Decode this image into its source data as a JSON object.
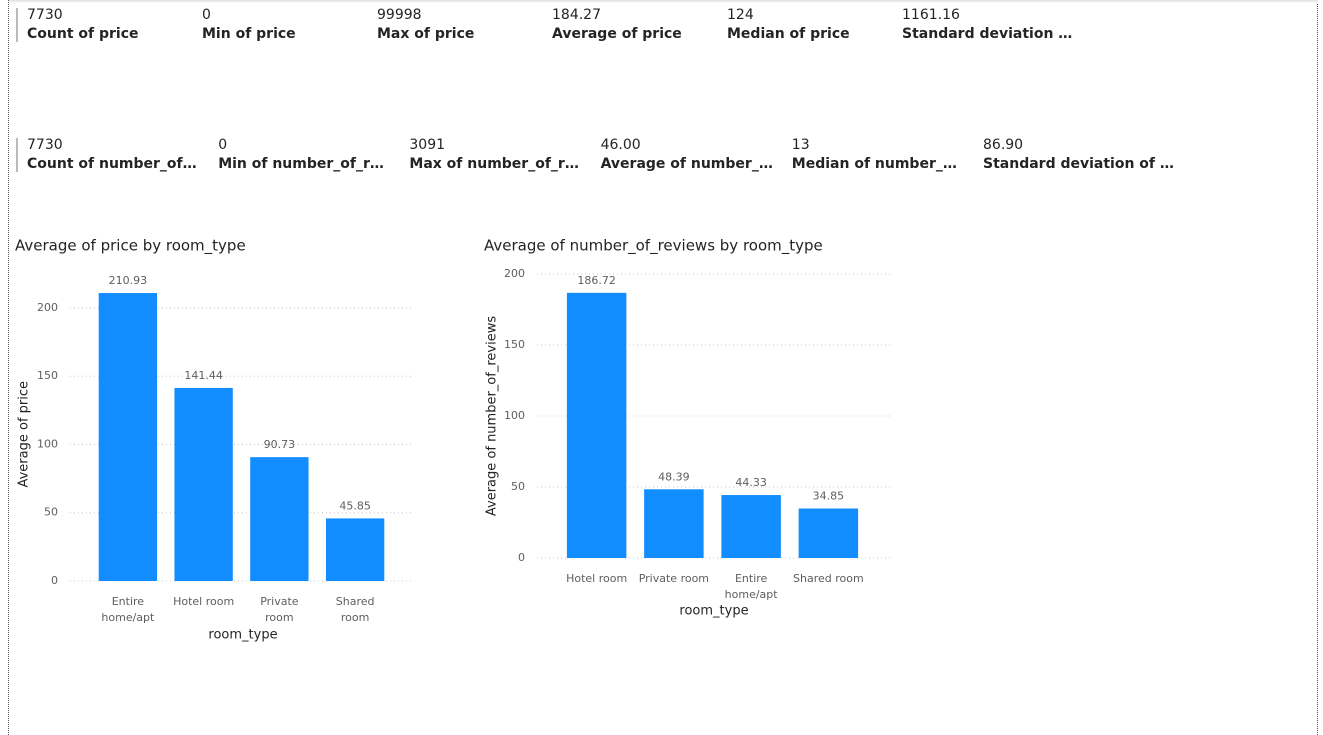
{
  "card_rows": [
    [
      {
        "value": "7730",
        "label": "Count of price"
      },
      {
        "value": "0",
        "label": "Min of price"
      },
      {
        "value": "99998",
        "label": "Max of price"
      },
      {
        "value": "184.27",
        "label": "Average of price"
      },
      {
        "value": "124",
        "label": "Median of price"
      },
      {
        "value": "1161.16",
        "label": "Standard deviation …"
      }
    ],
    [
      {
        "value": "7730",
        "label": "Count of number_of…"
      },
      {
        "value": "0",
        "label": "Min of number_of_r…"
      },
      {
        "value": "3091",
        "label": "Max of number_of_r…"
      },
      {
        "value": "46.00",
        "label": "Average of number_…"
      },
      {
        "value": "13",
        "label": "Median of number_…"
      },
      {
        "value": "86.90",
        "label": "Standard deviation of …"
      }
    ]
  ],
  "chart_data": [
    {
      "type": "bar",
      "title": "Average of price by room_type",
      "x_label": "room_type",
      "y_label": "Average of price",
      "categories": [
        "Entire home/apt",
        "Hotel room",
        "Private room",
        "Shared room"
      ],
      "values": [
        210.93,
        141.44,
        90.73,
        45.85
      ],
      "color": "#118dff",
      "ylim": [
        0,
        215
      ],
      "yticks": [
        0,
        50,
        100,
        150,
        200
      ],
      "grid": true
    },
    {
      "type": "bar",
      "title": "Average of number_of_reviews by room_type",
      "x_label": "room_type",
      "y_label": "Average of number_of_reviews",
      "categories": [
        "Hotel room",
        "Private room",
        "Entire home/apt",
        "Shared room"
      ],
      "values": [
        186.72,
        48.39,
        44.33,
        34.85
      ],
      "color": "#118dff",
      "ylim": [
        0,
        200
      ],
      "yticks": [
        0,
        50,
        100,
        150,
        200
      ],
      "grid": true
    }
  ]
}
